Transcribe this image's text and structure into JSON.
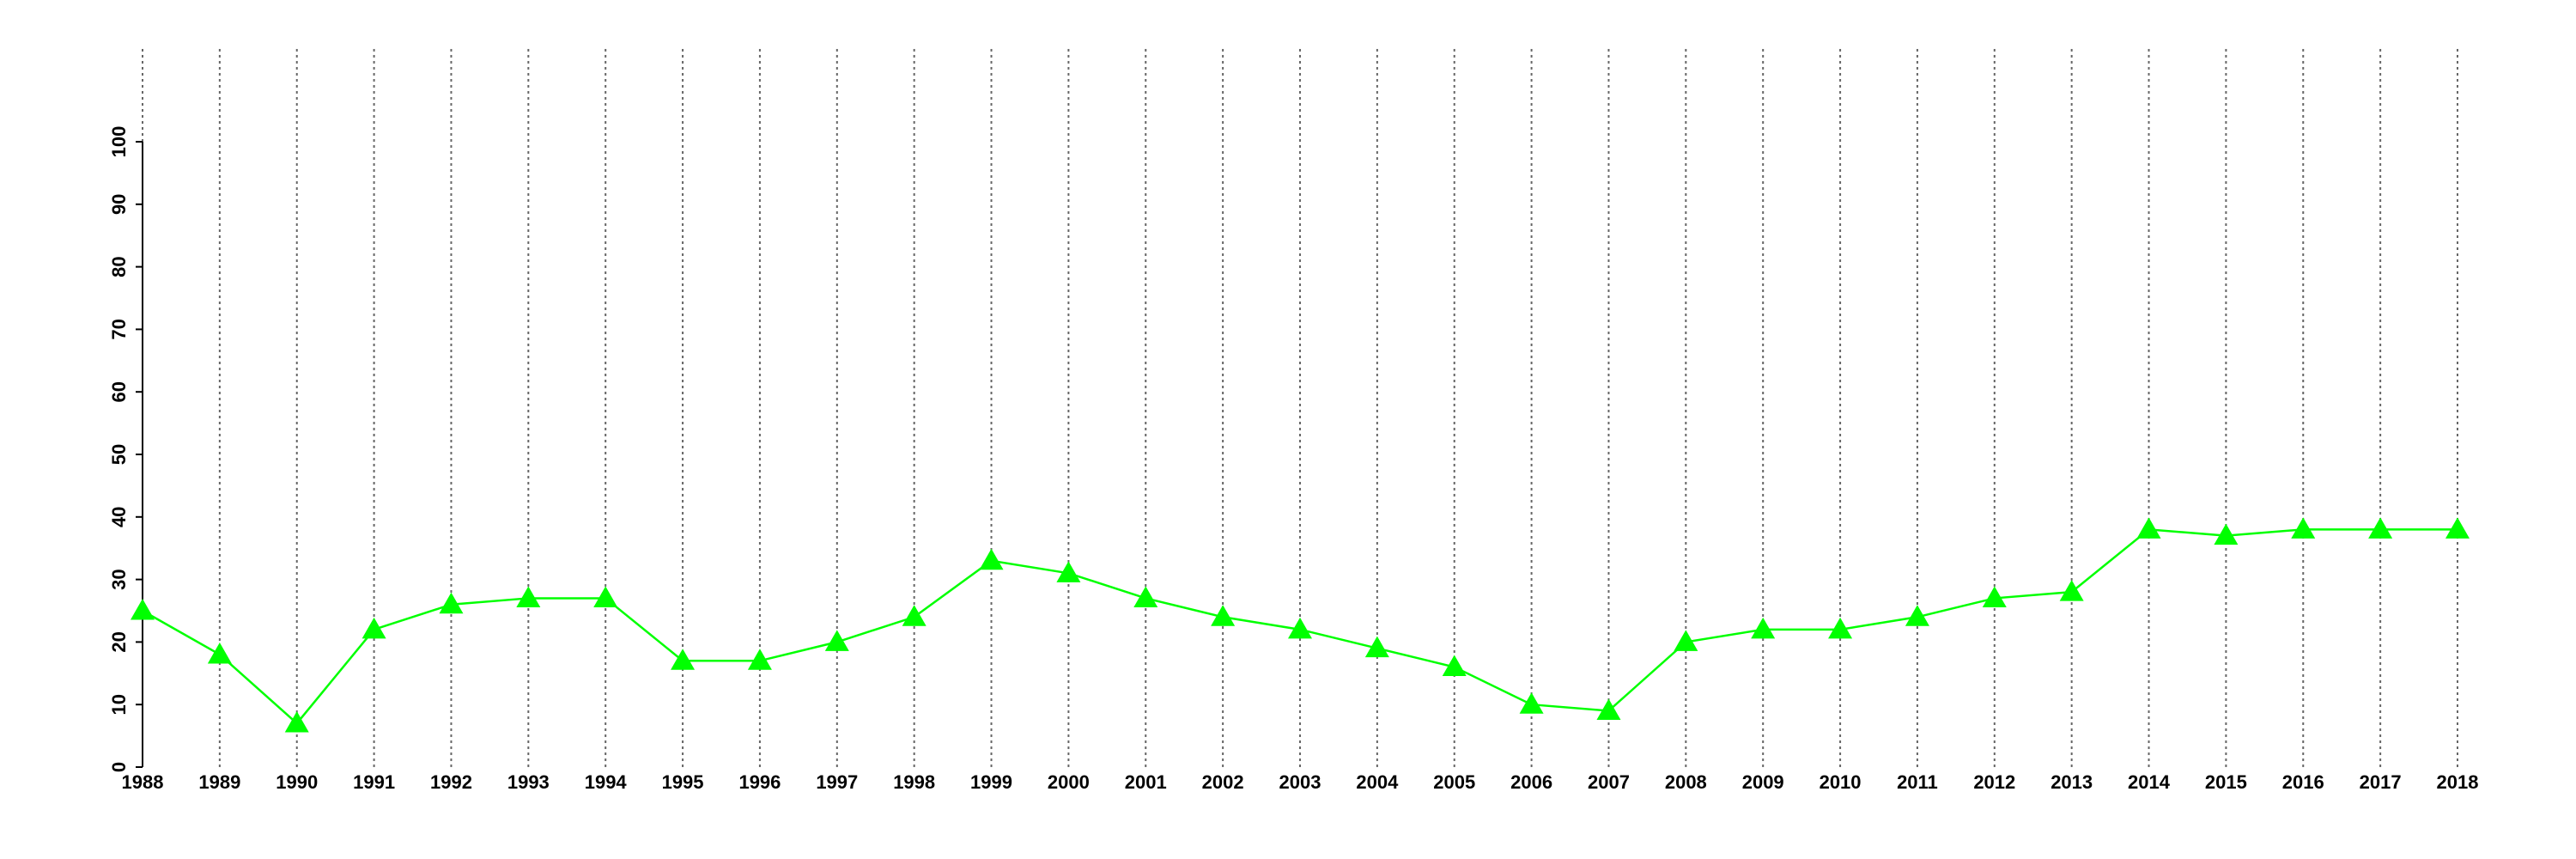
{
  "chart_data": {
    "type": "line",
    "x": [
      1988,
      1989,
      1990,
      1991,
      1992,
      1993,
      1994,
      1995,
      1996,
      1997,
      1998,
      1999,
      2000,
      2001,
      2002,
      2003,
      2004,
      2005,
      2006,
      2007,
      2008,
      2009,
      2010,
      2011,
      2012,
      2013,
      2014,
      2015,
      2016,
      2017,
      2018
    ],
    "series": [
      {
        "color": "#00ff00",
        "marker": "triangle",
        "values": [
          25,
          18,
          7,
          22,
          26,
          27,
          27,
          17,
          17,
          20,
          24,
          33,
          31,
          27,
          24,
          22,
          19,
          16,
          10,
          9,
          20,
          22,
          22,
          24,
          27,
          28,
          38,
          37,
          38,
          38,
          38
        ]
      }
    ],
    "xlim": [
      1988,
      2018
    ],
    "xticks": [
      1988,
      1989,
      1990,
      1991,
      1992,
      1993,
      1994,
      1995,
      1996,
      1997,
      1998,
      1999,
      2000,
      2001,
      2002,
      2003,
      2004,
      2005,
      2006,
      2007,
      2008,
      2009,
      2010,
      2011,
      2012,
      2013,
      2014,
      2015,
      2016,
      2017,
      2018
    ],
    "ylim": [
      0,
      100
    ],
    "yticks": [
      0,
      10,
      20,
      30,
      40,
      50,
      60,
      70,
      80,
      90,
      100
    ],
    "grid": "x"
  }
}
